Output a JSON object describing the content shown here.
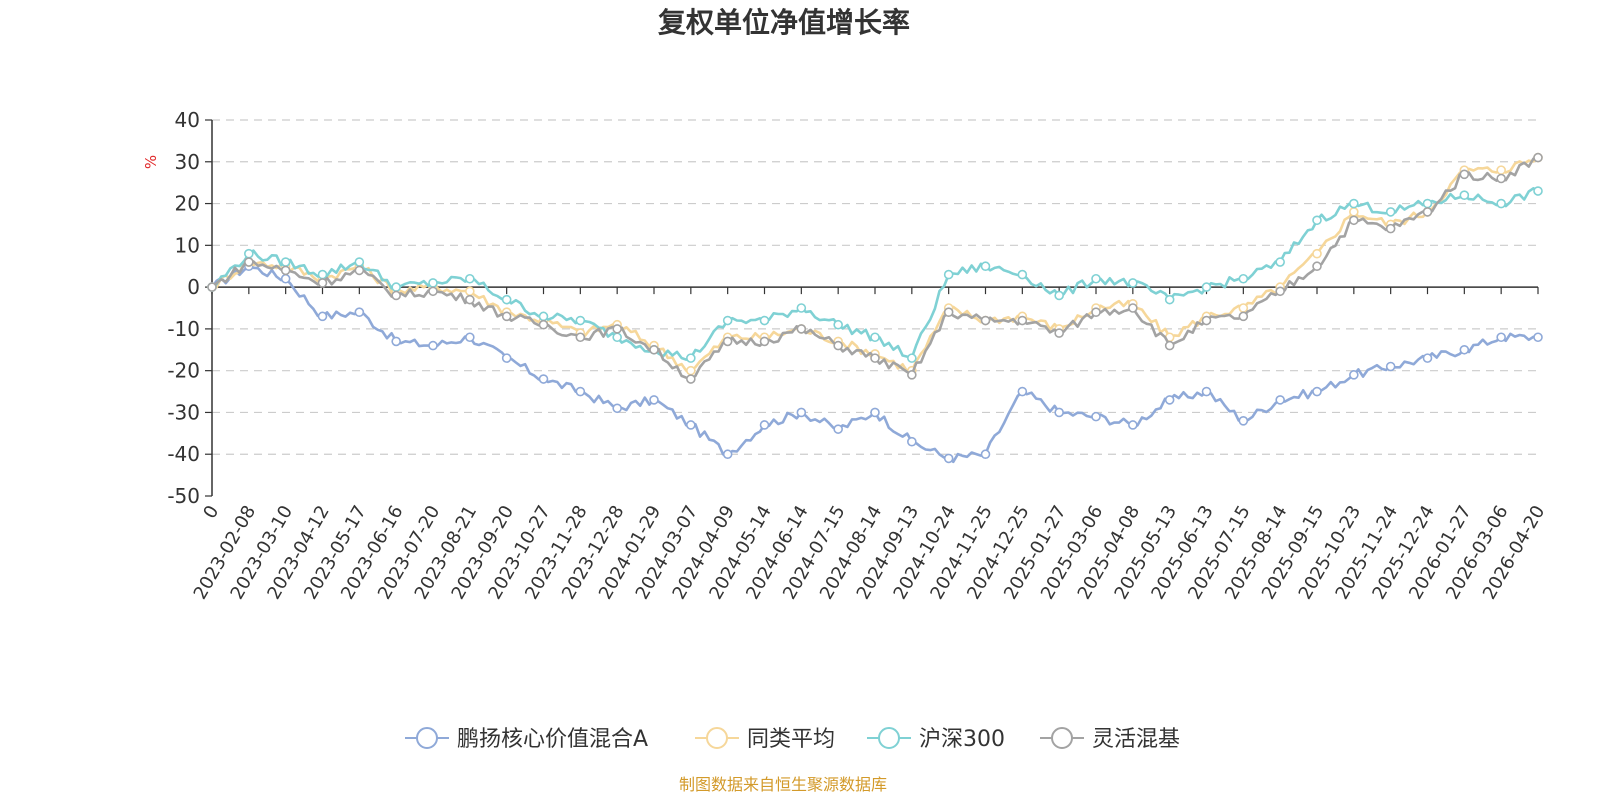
{
  "chart_data": {
    "type": "line",
    "title": "复权单位净值增长率",
    "ylabel": "%",
    "ylim": [
      -50,
      40
    ],
    "yticks": [
      40,
      30,
      20,
      10,
      0,
      -10,
      -20,
      -30,
      -40,
      -50
    ],
    "grid": true,
    "legend_position": "bottom",
    "categories": [
      "0",
      "2023-02-08",
      "2023-03-10",
      "2023-04-12",
      "2023-05-17",
      "2023-06-16",
      "2023-07-20",
      "2023-08-21",
      "2023-09-20",
      "2023-10-27",
      "2023-11-28",
      "2023-12-28",
      "2024-01-29",
      "2024-03-07",
      "2024-04-09",
      "2024-05-14",
      "2024-06-14",
      "2024-07-15",
      "2024-08-14",
      "2024-09-13",
      "2024-10-24",
      "2024-11-25",
      "2024-12-25",
      "2025-01-27",
      "2025-03-06",
      "2025-04-08",
      "2025-05-13",
      "2025-06-13",
      "2025-07-15",
      "2025-08-14",
      "2025-09-15",
      "2025-10-23",
      "2025-11-24",
      "2025-12-24",
      "2026-01-27",
      "2026-03-06",
      "2026-04-20"
    ],
    "series": [
      {
        "name": "鹏扬核心价值混合A",
        "color": "#8fa9d8",
        "values": [
          0,
          5,
          2,
          -7,
          -6,
          -13,
          -14,
          -12,
          -17,
          -22,
          -25,
          -29,
          -27,
          -33,
          -40,
          -33,
          -30,
          -34,
          -30,
          -37,
          -41,
          -40,
          -25,
          -30,
          -31,
          -33,
          -27,
          -25,
          -32,
          -27,
          -25,
          -21,
          -19,
          -17,
          -15,
          -12,
          -12
        ]
      },
      {
        "name": "同类平均",
        "color": "#f6d79a",
        "values": [
          0,
          6,
          5,
          2,
          5,
          -1,
          0,
          -1,
          -6,
          -8,
          -11,
          -9,
          -14,
          -20,
          -12,
          -12,
          -10,
          -13,
          -16,
          -20,
          -5,
          -8,
          -7,
          -10,
          -5,
          -4,
          -12,
          -7,
          -5,
          0,
          8,
          18,
          15,
          18,
          28,
          28,
          31
        ]
      },
      {
        "name": "沪深300",
        "color": "#7fd1d4",
        "values": [
          0,
          8,
          6,
          3,
          6,
          0,
          1,
          2,
          -3,
          -7,
          -8,
          -12,
          -15,
          -17,
          -8,
          -8,
          -5,
          -9,
          -12,
          -17,
          3,
          5,
          3,
          -2,
          2,
          1,
          -3,
          0,
          2,
          6,
          16,
          20,
          18,
          20,
          22,
          20,
          23
        ]
      },
      {
        "name": "灵活混基",
        "color": "#a3a3a3",
        "values": [
          0,
          6,
          4,
          1,
          4,
          -2,
          -1,
          -3,
          -7,
          -9,
          -12,
          -10,
          -15,
          -22,
          -13,
          -13,
          -10,
          -14,
          -17,
          -21,
          -6,
          -8,
          -8,
          -11,
          -6,
          -5,
          -14,
          -8,
          -7,
          -1,
          5,
          16,
          14,
          18,
          27,
          26,
          31
        ]
      }
    ]
  },
  "source_text": "制图数据来自恒生聚源数据库"
}
